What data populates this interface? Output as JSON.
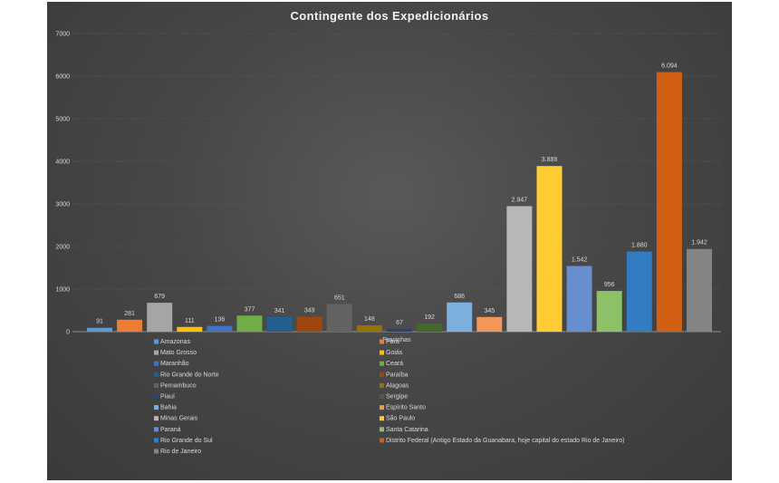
{
  "chart_data": {
    "type": "bar",
    "title": "Contingente dos Expedicionários",
    "xlabel": "Pracinhas",
    "ylabel": "",
    "ylim": [
      0,
      7000
    ],
    "yticks": [
      "0",
      "1000",
      "2000",
      "3000",
      "4000",
      "5000",
      "6000",
      "7000"
    ],
    "grid": true,
    "legend_position": "bottom",
    "series": [
      {
        "name": "Amazonas",
        "value": 91,
        "label": "91",
        "color": "#5b9bd5"
      },
      {
        "name": "Pará",
        "value": 281,
        "label": "281",
        "color": "#ed7d31"
      },
      {
        "name": "Mato Grosso",
        "value": 679,
        "label": "679",
        "color": "#a5a5a5"
      },
      {
        "name": "Goiás",
        "value": 111,
        "label": "111",
        "color": "#ffc000"
      },
      {
        "name": "Maranhão",
        "value": 136,
        "label": "136",
        "color": "#4472c4"
      },
      {
        "name": "Ceará",
        "value": 377,
        "label": "377",
        "color": "#70ad47"
      },
      {
        "name": "Rio Grande do Norte",
        "value": 341,
        "label": "341",
        "color": "#255e91"
      },
      {
        "name": "Paraíba",
        "value": 349,
        "label": "349",
        "color": "#9e480e"
      },
      {
        "name": "Pernambuco",
        "value": 651,
        "label": "651",
        "color": "#636363"
      },
      {
        "name": "Alagoas",
        "value": 148,
        "label": "148",
        "color": "#997300"
      },
      {
        "name": "Piauí",
        "value": 67,
        "label": "67",
        "color": "#264478"
      },
      {
        "name": "Sergipe",
        "value": 192,
        "label": "192",
        "color": "#43682b"
      },
      {
        "name": "Bahia",
        "value": 686,
        "label": "686",
        "color": "#7cafdd"
      },
      {
        "name": "Espírito Santo",
        "value": 345,
        "label": "345",
        "color": "#f1975a"
      },
      {
        "name": "Minas Gerais",
        "value": 2947,
        "label": "2.947",
        "color": "#b7b7b7"
      },
      {
        "name": "São Paulo",
        "value": 3889,
        "label": "3.889",
        "color": "#ffcd33"
      },
      {
        "name": "Paraná",
        "value": 1542,
        "label": "1.542",
        "color": "#698ed0"
      },
      {
        "name": "Santa Catarina",
        "value": 956,
        "label": "956",
        "color": "#8cc168"
      },
      {
        "name": "Rio Grande do Sul",
        "value": 1880,
        "label": "1.880",
        "color": "#327dc2"
      },
      {
        "name": "Distrito Federal (Antigo Estado da Guanabara, hoje capital do estado Rio de Janeiro)",
        "value": 6094,
        "label": "6.094",
        "color": "#d26012"
      },
      {
        "name": "Rio de Janeiro",
        "value": 1942,
        "label": "1.942",
        "color": "#848484"
      }
    ]
  }
}
